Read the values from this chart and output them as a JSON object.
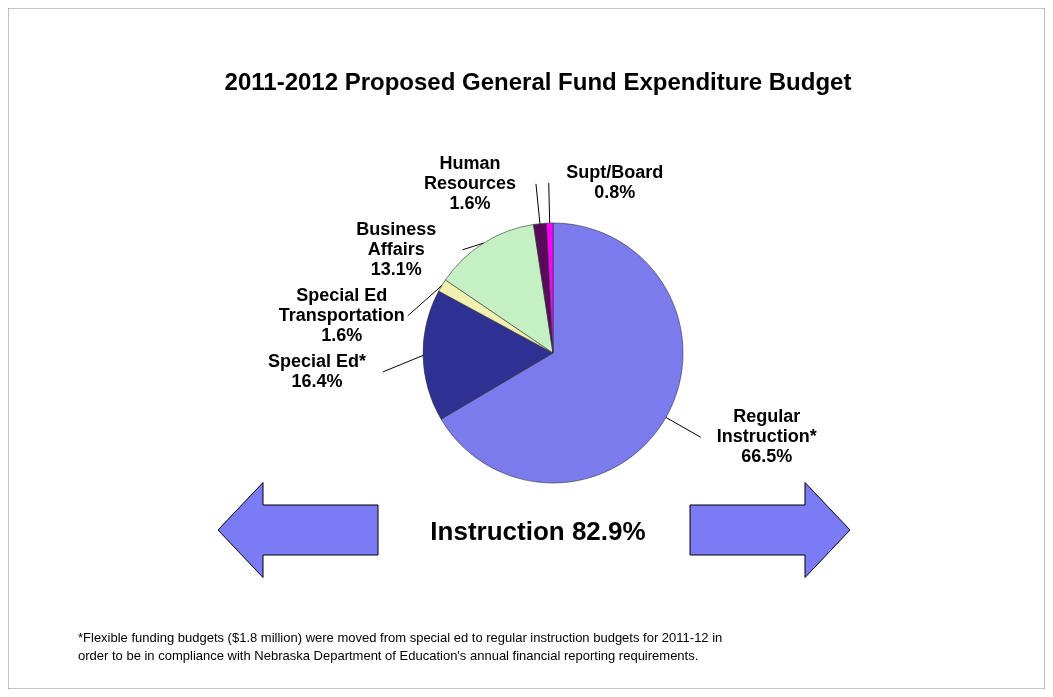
{
  "chart_data": {
    "type": "pie",
    "title": "2011-2012 Proposed General Fund Expenditure Budget",
    "categories": [
      "Regular Instruction*",
      "Special Ed*",
      "Special Ed Transportation",
      "Business Affairs",
      "Human Resources",
      "Supt/Board"
    ],
    "values": [
      66.5,
      16.4,
      1.6,
      13.1,
      1.6,
      0.8
    ],
    "value_labels": [
      "66.5%",
      "16.4%",
      "1.6%",
      "13.1%",
      "1.6%",
      "0.8%"
    ],
    "colors": [
      "#7b7bee",
      "#2e3192",
      "#f0f0b0",
      "#c4f0c4",
      "#5a0a5a",
      "#ff00ff"
    ],
    "annotations": [
      "Instruction 82.9%",
      "*Flexible funding budgets ($1.8 million) were moved from special  ed to regular instruction budgets for 2011-12 in order to be in compliance with Nebraska Department of Education's annual financial reporting requirements."
    ]
  }
}
